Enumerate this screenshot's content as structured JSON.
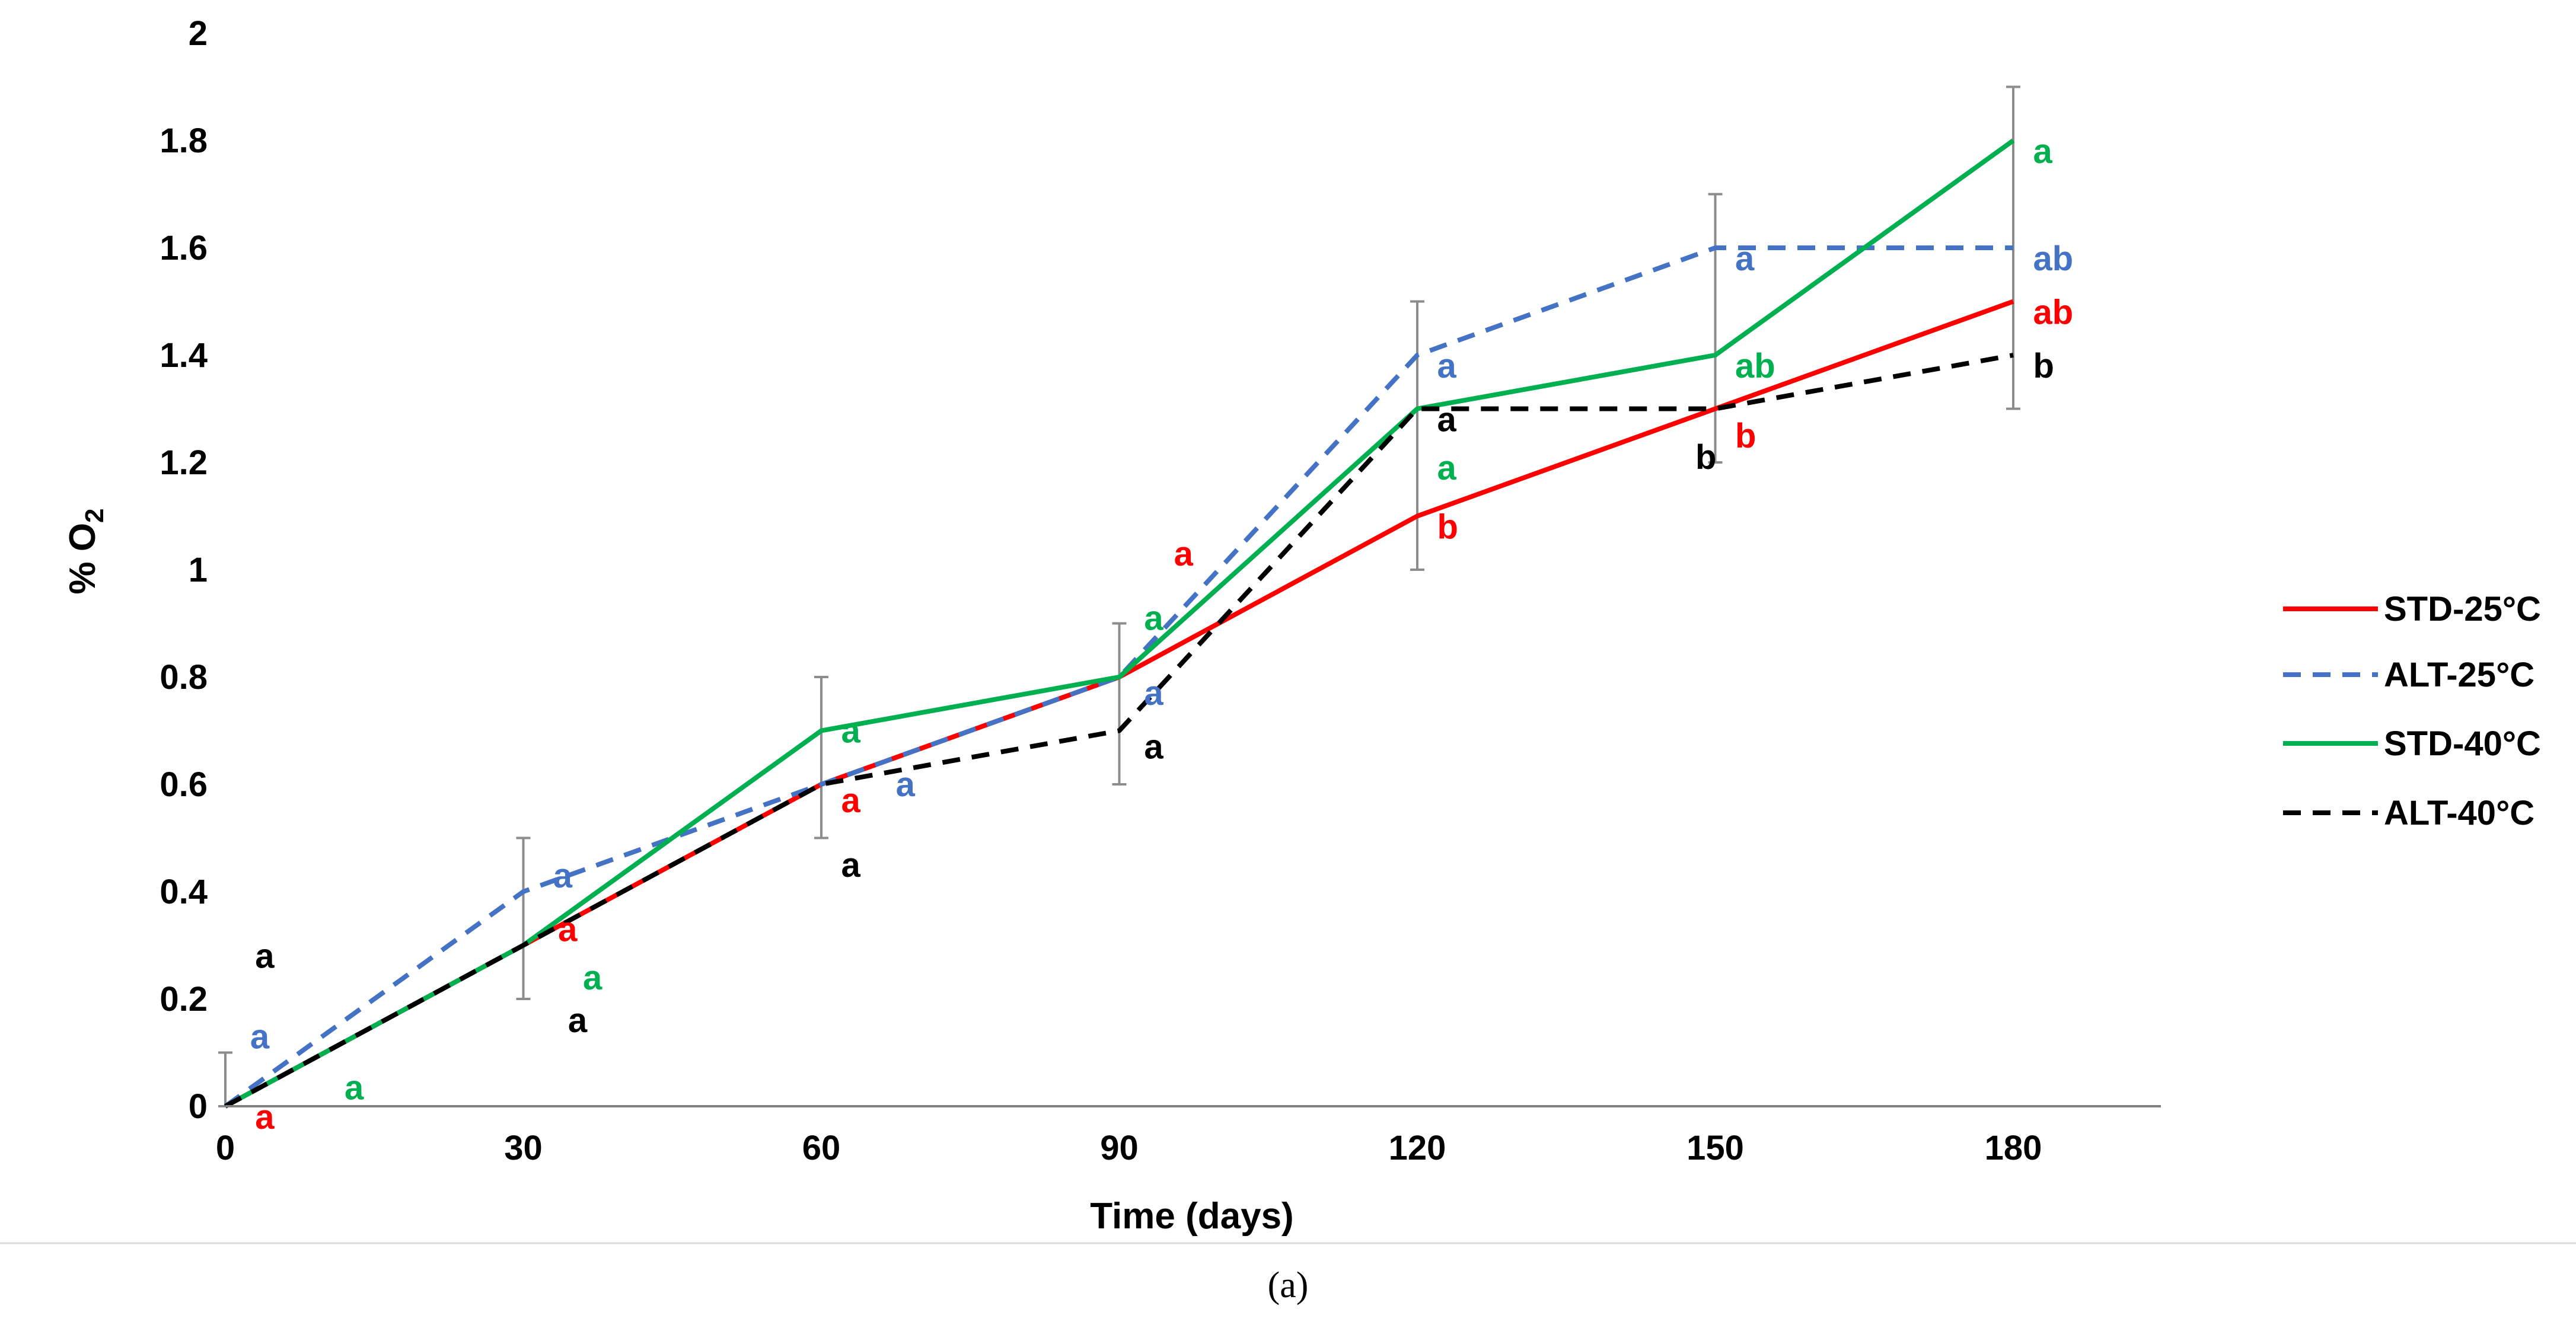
{
  "chart_data": {
    "type": "line",
    "xlabel": "Time (days)",
    "ylabel": "% O",
    "ylabel_subscript": "2",
    "x": [
      0,
      30,
      60,
      90,
      120,
      150,
      180
    ],
    "xlim": [
      0,
      190
    ],
    "ylim": [
      0,
      2
    ],
    "xticks": [
      "0",
      "30",
      "60",
      "90",
      "120",
      "150",
      "180"
    ],
    "yticks": [
      "0",
      "0.2",
      "0.4",
      "0.6",
      "0.8",
      "1",
      "1.2",
      "1.4",
      "1.6",
      "1.8",
      "2"
    ],
    "grid": false,
    "legend_position": "right",
    "error_bars": [
      {
        "x": 0,
        "low": 0,
        "high": 0.1
      },
      {
        "x": 30,
        "low": 0.2,
        "high": 0.5
      },
      {
        "x": 60,
        "low": 0.5,
        "high": 0.8
      },
      {
        "x": 90,
        "low": 0.6,
        "high": 0.9
      },
      {
        "x": 120,
        "low": 1.0,
        "high": 1.5
      },
      {
        "x": 150,
        "low": 1.2,
        "high": 1.7
      },
      {
        "x": 180,
        "low": 1.3,
        "high": 1.9
      }
    ],
    "series": [
      {
        "name": "STD-25°C",
        "color": "#ff0000",
        "dash": "solid",
        "values": [
          0,
          0.3,
          0.6,
          0.8,
          1.1,
          1.3,
          1.5
        ]
      },
      {
        "name": "ALT-25°C",
        "color": "#4472c4",
        "dash": "dashed",
        "values": [
          0,
          0.4,
          0.6,
          0.8,
          1.4,
          1.6,
          1.6
        ]
      },
      {
        "name": "STD-40°C",
        "color": "#00b050",
        "dash": "solid",
        "values": [
          0,
          0.3,
          0.7,
          0.8,
          1.3,
          1.4,
          1.8
        ]
      },
      {
        "name": "ALT-40°C",
        "color": "#000000",
        "dash": "dashed",
        "values": [
          0,
          0.3,
          0.6,
          0.7,
          1.3,
          1.3,
          1.4
        ]
      }
    ],
    "annotations": [
      {
        "text": "a",
        "x": 3,
        "y": 0.28,
        "series": 3
      },
      {
        "text": "a",
        "x": 2.5,
        "y": 0.13,
        "series": 1
      },
      {
        "text": "a",
        "x": 3,
        "y": -0.02,
        "series": 0
      },
      {
        "text": "a",
        "x": 12,
        "y": 0.035,
        "series": 2
      },
      {
        "text": "a",
        "x": 33,
        "y": 0.43,
        "series": 1
      },
      {
        "text": "a",
        "x": 33.5,
        "y": 0.33,
        "series": 0
      },
      {
        "text": "a",
        "x": 36,
        "y": 0.24,
        "series": 2
      },
      {
        "text": "a",
        "x": 34.5,
        "y": 0.16,
        "series": 3
      },
      {
        "text": "a",
        "x": 62,
        "y": 0.7,
        "series": 2
      },
      {
        "text": "a",
        "x": 62,
        "y": 0.57,
        "series": 0
      },
      {
        "text": "a",
        "x": 67.5,
        "y": 0.6,
        "series": 1
      },
      {
        "text": "a",
        "x": 62,
        "y": 0.45,
        "series": 3
      },
      {
        "text": "a",
        "x": 95.5,
        "y": 1.03,
        "series": 0
      },
      {
        "text": "a",
        "x": 92.5,
        "y": 0.91,
        "series": 2
      },
      {
        "text": "a",
        "x": 92.5,
        "y": 0.77,
        "series": 1
      },
      {
        "text": "a",
        "x": 92.5,
        "y": 0.67,
        "series": 3
      },
      {
        "text": "a",
        "x": 122,
        "y": 1.38,
        "series": 1
      },
      {
        "text": "a",
        "x": 122,
        "y": 1.28,
        "series": 3
      },
      {
        "text": "a",
        "x": 122,
        "y": 1.19,
        "series": 2
      },
      {
        "text": "b",
        "x": 122,
        "y": 1.08,
        "series": 0
      },
      {
        "text": "a",
        "x": 152,
        "y": 1.58,
        "series": 1
      },
      {
        "text": "ab",
        "x": 152,
        "y": 1.38,
        "series": 2
      },
      {
        "text": "b",
        "x": 152,
        "y": 1.25,
        "series": 0
      },
      {
        "text": "b",
        "x": 148,
        "y": 1.21,
        "series": 3
      },
      {
        "text": "a",
        "x": 182,
        "y": 1.78,
        "series": 2
      },
      {
        "text": "ab",
        "x": 182,
        "y": 1.58,
        "series": 1
      },
      {
        "text": "ab",
        "x": 182,
        "y": 1.48,
        "series": 0
      },
      {
        "text": "b",
        "x": 182,
        "y": 1.38,
        "series": 3
      }
    ]
  },
  "caption": "(a)"
}
